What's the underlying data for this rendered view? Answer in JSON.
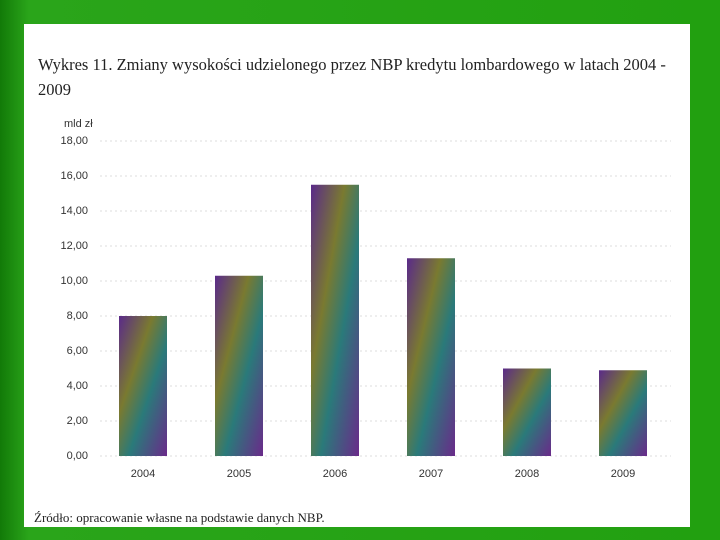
{
  "chart_data": {
    "type": "bar",
    "title": "Wykres 11. Zmiany wysokości udzielonego przez NBP kredytu lombardowego w latach 2004 - 2009",
    "y_label": "mld zł",
    "categories": [
      "2004",
      "2005",
      "2006",
      "2007",
      "2008",
      "2009"
    ],
    "values": [
      8.0,
      10.3,
      15.5,
      11.3,
      5.0,
      4.9
    ],
    "ylim": [
      0,
      18
    ],
    "yticks": [
      {
        "value": 0,
        "label": "0,00"
      },
      {
        "value": 2,
        "label": "2,00"
      },
      {
        "value": 4,
        "label": "4,00"
      },
      {
        "value": 6,
        "label": "6,00"
      },
      {
        "value": 8,
        "label": "8,00"
      },
      {
        "value": 10,
        "label": "10,00"
      },
      {
        "value": 12,
        "label": "12,00"
      },
      {
        "value": 14,
        "label": "14,00"
      },
      {
        "value": 16,
        "label": "16,00"
      },
      {
        "value": 18,
        "label": "18,00"
      }
    ],
    "grid": true,
    "source": "Źródło: opracowanie własne na podstawie danych NBP."
  }
}
